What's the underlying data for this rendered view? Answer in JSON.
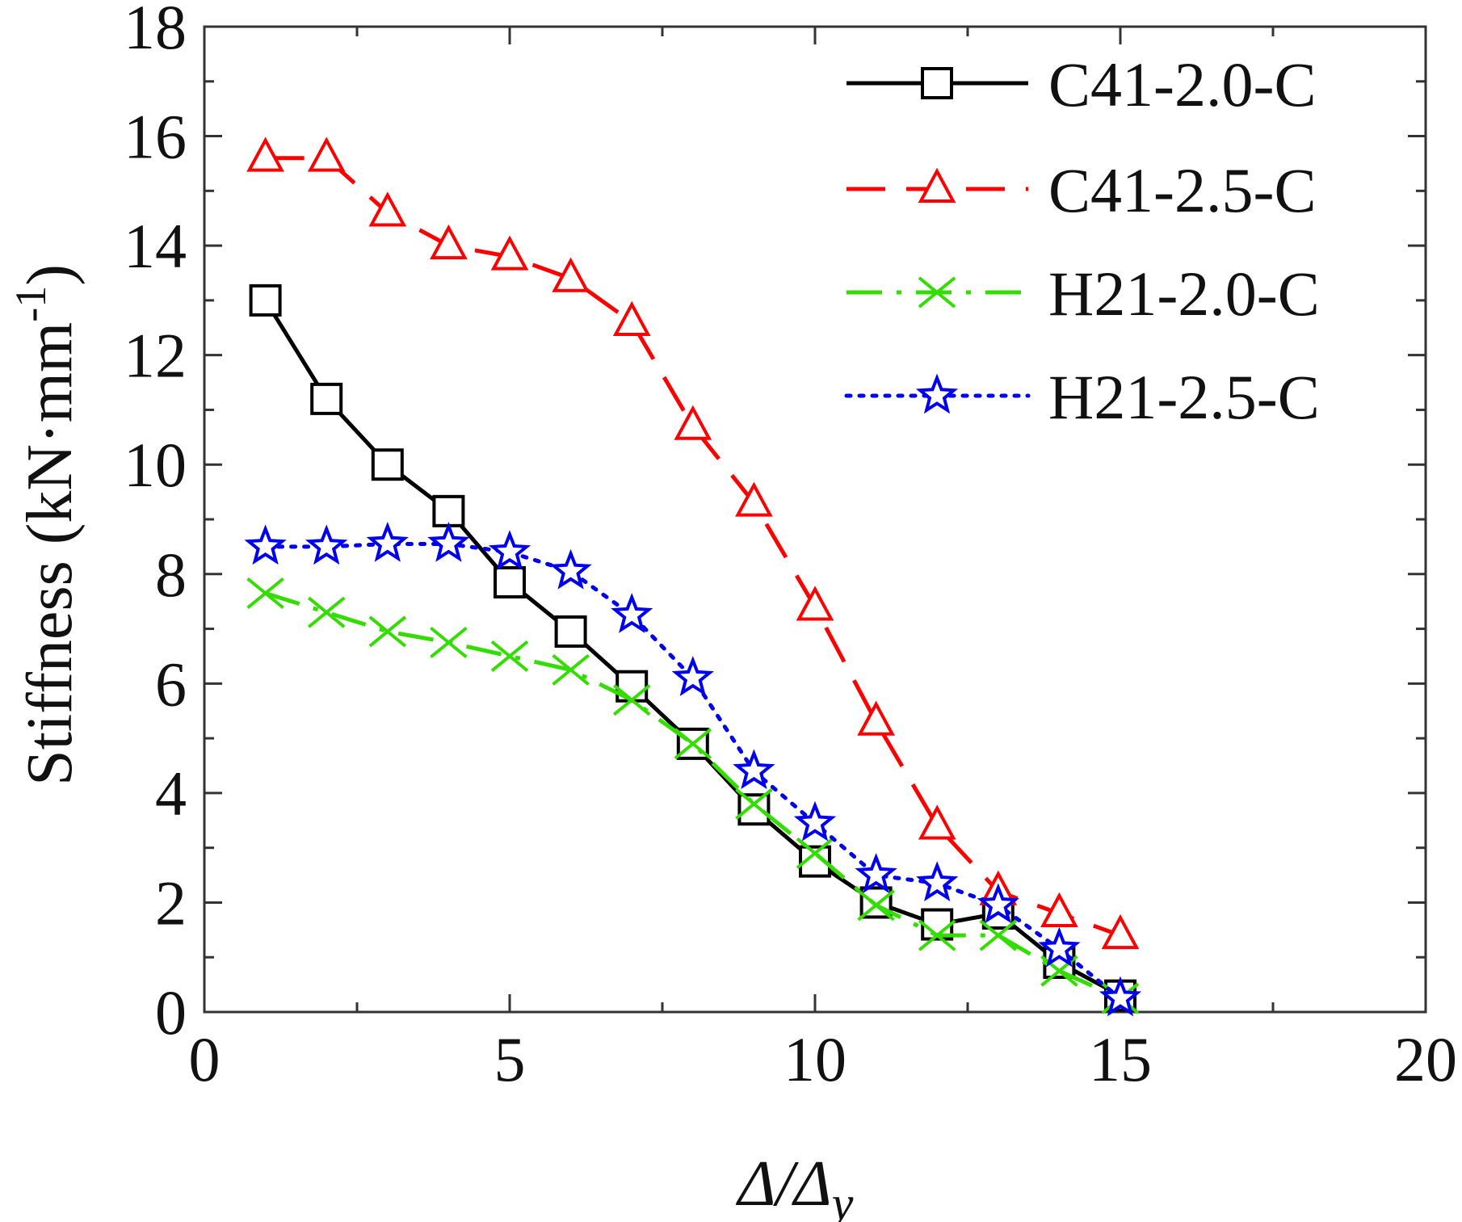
{
  "chart_data": {
    "type": "line",
    "xlabel": {
      "main": "Δ/Δ",
      "sub": "y"
    },
    "ylabel": {
      "main": "Stiffness (kN·mm",
      "sup": "-1",
      "close": ")"
    },
    "xlim": [
      0,
      20
    ],
    "ylim": [
      0,
      18
    ],
    "xticks": [
      0,
      5,
      10,
      15,
      20
    ],
    "yticks": [
      0,
      2,
      4,
      6,
      8,
      10,
      12,
      14,
      16,
      18
    ],
    "grid": false,
    "legend_position": "top-right",
    "series": [
      {
        "name": "C41-2.0-C",
        "color": "#000000",
        "marker": "square",
        "line_style": "solid",
        "x": [
          1,
          2,
          3,
          4,
          5,
          6,
          7,
          8,
          9,
          10,
          11,
          12,
          13,
          14,
          15
        ],
        "y": [
          13.0,
          11.2,
          10.0,
          9.15,
          7.85,
          6.95,
          5.95,
          4.9,
          3.7,
          2.75,
          2.0,
          1.6,
          1.8,
          0.9,
          0.3
        ]
      },
      {
        "name": "C41-2.5-C",
        "color": "#ff0000",
        "marker": "triangle",
        "line_style": "dashed",
        "x": [
          1,
          2,
          3,
          4,
          5,
          6,
          7,
          8,
          9,
          10,
          11,
          12,
          13,
          14,
          15
        ],
        "y": [
          15.6,
          15.6,
          14.6,
          14.0,
          13.8,
          13.4,
          12.6,
          10.7,
          9.3,
          7.4,
          5.3,
          3.4,
          2.2,
          1.8,
          1.4
        ]
      },
      {
        "name": "H21-2.0-C",
        "color": "#33dd00",
        "marker": "x",
        "line_style": "dashdot",
        "x": [
          1,
          2,
          3,
          4,
          5,
          6,
          7,
          8,
          9,
          10,
          11,
          12,
          13,
          14,
          15
        ],
        "y": [
          7.65,
          7.3,
          6.95,
          6.75,
          6.5,
          6.25,
          5.7,
          4.9,
          3.8,
          2.9,
          1.95,
          1.4,
          1.4,
          0.75,
          0.25
        ]
      },
      {
        "name": "H21-2.5-C",
        "color": "#0000ee",
        "marker": "star",
        "line_style": "dotted",
        "x": [
          1,
          2,
          3,
          4,
          5,
          6,
          7,
          8,
          9,
          10,
          11,
          12,
          13,
          14,
          15
        ],
        "y": [
          8.5,
          8.5,
          8.55,
          8.55,
          8.4,
          8.05,
          7.25,
          6.1,
          4.4,
          3.45,
          2.5,
          2.35,
          1.95,
          1.15,
          0.25
        ]
      }
    ]
  }
}
